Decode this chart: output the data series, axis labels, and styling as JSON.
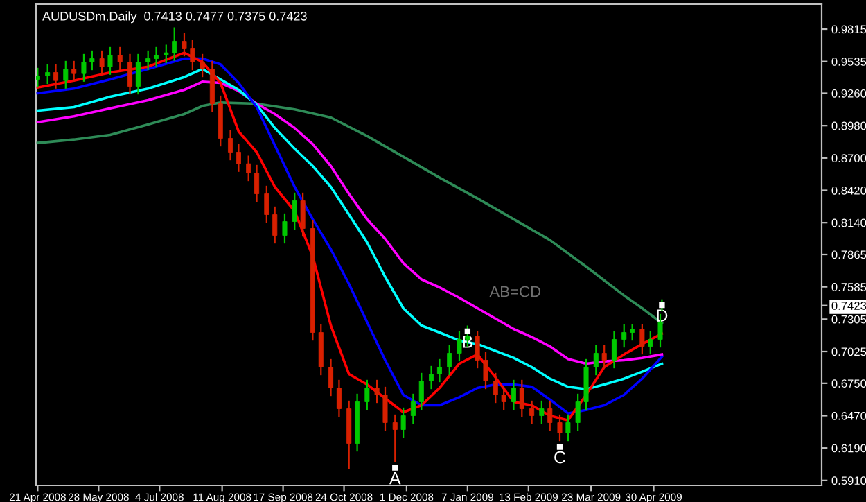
{
  "chart_data": {
    "type": "candlestick",
    "title": "AUDUSDm,Daily  0.7413 0.7477 0.7375 0.7423",
    "x": [
      "2008-04-21",
      "2008-04-27",
      "2008-05-02",
      "2008-05-08",
      "2008-05-13",
      "2008-05-19",
      "2008-05-24",
      "2008-05-30",
      "2008-06-04",
      "2008-06-10",
      "2008-06-16",
      "2008-06-21",
      "2008-06-27",
      "2008-07-02",
      "2008-07-08",
      "2008-07-13",
      "2008-07-19",
      "2008-07-24",
      "2008-07-30",
      "2008-08-05",
      "2008-08-10",
      "2008-08-16",
      "2008-08-21",
      "2008-08-27",
      "2008-09-01",
      "2008-09-07",
      "2008-09-12",
      "2008-09-18",
      "2008-09-24",
      "2008-09-29",
      "2008-10-05",
      "2008-10-10",
      "2008-10-16",
      "2008-10-21",
      "2008-10-27",
      "2008-11-01",
      "2008-11-07",
      "2008-11-13",
      "2008-11-18",
      "2008-11-24",
      "2008-11-29",
      "2008-12-05",
      "2008-12-10",
      "2008-12-16",
      "2008-12-21",
      "2008-12-27",
      "2009-01-02",
      "2009-01-07",
      "2009-01-13",
      "2009-01-18",
      "2009-01-24",
      "2009-01-29",
      "2009-02-04",
      "2009-02-09",
      "2009-02-15",
      "2009-02-21",
      "2009-02-26",
      "2009-03-04",
      "2009-03-09",
      "2009-03-15",
      "2009-03-20",
      "2009-03-26",
      "2009-03-31",
      "2009-04-06",
      "2009-04-12",
      "2009-04-17",
      "2009-04-23",
      "2009-04-28",
      "2009-05-04",
      "2009-05-05"
    ],
    "ohlc": [
      [
        0.938,
        0.948,
        0.931,
        0.941
      ],
      [
        0.941,
        0.951,
        0.934,
        0.944
      ],
      [
        0.944,
        0.951,
        0.93,
        0.937
      ],
      [
        0.937,
        0.954,
        0.93,
        0.947
      ],
      [
        0.947,
        0.954,
        0.936,
        0.943
      ],
      [
        0.943,
        0.96,
        0.936,
        0.953
      ],
      [
        0.953,
        0.963,
        0.946,
        0.956
      ],
      [
        0.956,
        0.963,
        0.942,
        0.949
      ],
      [
        0.949,
        0.966,
        0.942,
        0.959
      ],
      [
        0.959,
        0.966,
        0.946,
        0.953
      ],
      [
        0.953,
        0.96,
        0.925,
        0.932
      ],
      [
        0.932,
        0.96,
        0.925,
        0.953
      ],
      [
        0.953,
        0.963,
        0.946,
        0.956
      ],
      [
        0.956,
        0.966,
        0.949,
        0.959
      ],
      [
        0.959,
        0.968,
        0.952,
        0.961
      ],
      [
        0.961,
        0.983,
        0.954,
        0.971
      ],
      [
        0.971,
        0.978,
        0.958,
        0.965
      ],
      [
        0.965,
        0.972,
        0.946,
        0.953
      ],
      [
        0.953,
        0.96,
        0.94,
        0.947
      ],
      [
        0.947,
        0.954,
        0.91,
        0.917
      ],
      [
        0.917,
        0.924,
        0.88,
        0.887
      ],
      [
        0.887,
        0.894,
        0.868,
        0.875
      ],
      [
        0.875,
        0.882,
        0.858,
        0.865
      ],
      [
        0.865,
        0.872,
        0.85,
        0.857
      ],
      [
        0.857,
        0.864,
        0.832,
        0.839
      ],
      [
        0.839,
        0.846,
        0.814,
        0.821
      ],
      [
        0.821,
        0.828,
        0.796,
        0.803
      ],
      [
        0.803,
        0.822,
        0.796,
        0.815
      ],
      [
        0.815,
        0.84,
        0.808,
        0.833
      ],
      [
        0.833,
        0.84,
        0.802,
        0.809
      ],
      [
        0.809,
        0.816,
        0.712,
        0.719
      ],
      [
        0.719,
        0.726,
        0.682,
        0.689
      ],
      [
        0.689,
        0.696,
        0.664,
        0.671
      ],
      [
        0.671,
        0.678,
        0.646,
        0.653
      ],
      [
        0.653,
        0.66,
        0.601,
        0.623
      ],
      [
        0.623,
        0.666,
        0.616,
        0.659
      ],
      [
        0.659,
        0.678,
        0.652,
        0.671
      ],
      [
        0.671,
        0.678,
        0.658,
        0.665
      ],
      [
        0.665,
        0.672,
        0.634,
        0.641
      ],
      [
        0.641,
        0.648,
        0.607,
        0.635
      ],
      [
        0.635,
        0.654,
        0.628,
        0.647
      ],
      [
        0.647,
        0.666,
        0.64,
        0.659
      ],
      [
        0.659,
        0.684,
        0.652,
        0.677
      ],
      [
        0.677,
        0.69,
        0.67,
        0.683
      ],
      [
        0.683,
        0.696,
        0.676,
        0.689
      ],
      [
        0.689,
        0.708,
        0.682,
        0.701
      ],
      [
        0.701,
        0.72,
        0.694,
        0.713
      ],
      [
        0.713,
        0.725,
        0.706,
        0.716
      ],
      [
        0.716,
        0.72,
        0.688,
        0.695
      ],
      [
        0.695,
        0.702,
        0.67,
        0.677
      ],
      [
        0.677,
        0.684,
        0.658,
        0.665
      ],
      [
        0.665,
        0.672,
        0.652,
        0.659
      ],
      [
        0.659,
        0.678,
        0.652,
        0.671
      ],
      [
        0.671,
        0.678,
        0.646,
        0.653
      ],
      [
        0.653,
        0.66,
        0.64,
        0.647
      ],
      [
        0.647,
        0.66,
        0.64,
        0.653
      ],
      [
        0.653,
        0.66,
        0.634,
        0.641
      ],
      [
        0.641,
        0.648,
        0.625,
        0.632
      ],
      [
        0.632,
        0.648,
        0.625,
        0.641
      ],
      [
        0.641,
        0.666,
        0.634,
        0.659
      ],
      [
        0.659,
        0.696,
        0.652,
        0.689
      ],
      [
        0.689,
        0.708,
        0.682,
        0.701
      ],
      [
        0.701,
        0.708,
        0.688,
        0.695
      ],
      [
        0.695,
        0.72,
        0.688,
        0.713
      ],
      [
        0.713,
        0.726,
        0.706,
        0.719
      ],
      [
        0.719,
        0.726,
        0.712,
        0.722
      ],
      [
        0.722,
        0.726,
        0.7,
        0.707
      ],
      [
        0.707,
        0.72,
        0.7,
        0.713
      ],
      [
        0.713,
        0.735,
        0.706,
        0.728
      ],
      [
        0.7413,
        0.7477,
        0.7375,
        0.7423
      ]
    ],
    "colors": [
      "#00c800",
      "#00c800",
      "#d82000",
      "#00c800",
      "#d82000",
      "#00c800",
      "#00c800",
      "#d82000",
      "#00c800",
      "#d82000",
      "#d82000",
      "#00c800",
      "#00c800",
      "#00c800",
      "#00c800",
      "#00c800",
      "#d82000",
      "#d82000",
      "#d82000",
      "#d82000",
      "#d82000",
      "#d82000",
      "#d82000",
      "#d82000",
      "#d82000",
      "#d82000",
      "#d82000",
      "#00c800",
      "#00c800",
      "#d82000",
      "#d82000",
      "#d82000",
      "#d82000",
      "#d82000",
      "#d82000",
      "#00c800",
      "#00c800",
      "#d82000",
      "#d82000",
      "#d82000",
      "#00c800",
      "#00c800",
      "#00c800",
      "#00c800",
      "#00c800",
      "#00c800",
      "#00c800",
      "#00c800",
      "#d82000",
      "#d82000",
      "#d82000",
      "#d82000",
      "#00c800",
      "#d82000",
      "#d82000",
      "#00c800",
      "#d82000",
      "#d82000",
      "#00c800",
      "#00c800",
      "#00c800",
      "#00c800",
      "#d82000",
      "#00c800",
      "#00c800",
      "#00c800",
      "#d82000",
      "#00c800",
      "#00c800",
      "#00c800"
    ],
    "series": [
      {
        "type": "line",
        "color": "#2e8b57",
        "x": [
          "2008-04-21",
          "2008-05-13",
          "2008-06-04",
          "2008-06-27",
          "2008-07-19",
          "2008-07-30",
          "2008-08-10",
          "2008-09-01",
          "2008-09-24",
          "2008-10-16",
          "2008-11-07",
          "2008-11-29",
          "2008-12-21",
          "2009-01-13",
          "2009-02-04",
          "2009-02-26",
          "2009-03-20",
          "2009-04-12",
          "2009-04-23",
          "2009-05-05"
        ],
        "values": [
          0.883,
          0.886,
          0.89,
          0.899,
          0.908,
          0.915,
          0.918,
          0.917,
          0.912,
          0.905,
          0.889,
          0.871,
          0.853,
          0.835,
          0.817,
          0.799,
          0.776,
          0.751,
          0.74,
          0.727
        ]
      },
      {
        "type": "line",
        "color": "#ff00ff",
        "x": [
          "2008-04-21",
          "2008-05-13",
          "2008-06-04",
          "2008-06-27",
          "2008-07-19",
          "2008-07-30",
          "2008-08-10",
          "2008-08-21",
          "2008-09-01",
          "2008-09-12",
          "2008-09-24",
          "2008-10-05",
          "2008-10-16",
          "2008-10-27",
          "2008-11-07",
          "2008-11-18",
          "2008-11-29",
          "2008-12-10",
          "2008-12-21",
          "2009-01-02",
          "2009-01-13",
          "2009-01-24",
          "2009-02-04",
          "2009-02-15",
          "2009-02-26",
          "2009-03-09",
          "2009-03-20",
          "2009-03-31",
          "2009-04-12",
          "2009-04-23",
          "2009-05-05"
        ],
        "values": [
          0.901,
          0.906,
          0.913,
          0.92,
          0.929,
          0.936,
          0.935,
          0.928,
          0.917,
          0.908,
          0.896,
          0.882,
          0.863,
          0.839,
          0.817,
          0.8,
          0.779,
          0.765,
          0.758,
          0.749,
          0.74,
          0.731,
          0.722,
          0.715,
          0.707,
          0.696,
          0.692,
          0.694,
          0.695,
          0.697,
          0.7
        ]
      },
      {
        "type": "line",
        "color": "#00ffff",
        "x": [
          "2008-04-21",
          "2008-05-13",
          "2008-06-04",
          "2008-06-27",
          "2008-07-19",
          "2008-07-30",
          "2008-08-10",
          "2008-08-21",
          "2008-09-01",
          "2008-09-12",
          "2008-09-24",
          "2008-10-05",
          "2008-10-16",
          "2008-10-27",
          "2008-11-07",
          "2008-11-18",
          "2008-11-29",
          "2008-12-10",
          "2008-12-21",
          "2009-01-02",
          "2009-01-13",
          "2009-01-24",
          "2009-02-04",
          "2009-02-15",
          "2009-02-26",
          "2009-03-09",
          "2009-03-20",
          "2009-03-31",
          "2009-04-12",
          "2009-04-23",
          "2009-05-05"
        ],
        "values": [
          0.911,
          0.914,
          0.923,
          0.93,
          0.94,
          0.947,
          0.938,
          0.929,
          0.916,
          0.896,
          0.878,
          0.863,
          0.845,
          0.821,
          0.797,
          0.767,
          0.74,
          0.725,
          0.719,
          0.712,
          0.709,
          0.703,
          0.697,
          0.689,
          0.679,
          0.672,
          0.67,
          0.674,
          0.679,
          0.685,
          0.692
        ]
      },
      {
        "type": "line",
        "color": "#0000ff",
        "x": [
          "2008-04-21",
          "2008-05-13",
          "2008-06-04",
          "2008-06-27",
          "2008-07-19",
          "2008-07-30",
          "2008-08-10",
          "2008-08-21",
          "2008-09-01",
          "2008-09-12",
          "2008-09-24",
          "2008-10-05",
          "2008-10-16",
          "2008-10-27",
          "2008-11-07",
          "2008-11-18",
          "2008-11-29",
          "2008-12-10",
          "2008-12-21",
          "2009-01-02",
          "2009-01-13",
          "2009-01-24",
          "2009-02-04",
          "2009-02-15",
          "2009-02-26",
          "2009-03-09",
          "2009-03-20",
          "2009-03-31",
          "2009-04-12",
          "2009-04-23",
          "2009-05-05"
        ],
        "values": [
          0.926,
          0.93,
          0.938,
          0.947,
          0.956,
          0.956,
          0.951,
          0.935,
          0.914,
          0.881,
          0.845,
          0.817,
          0.791,
          0.761,
          0.728,
          0.695,
          0.665,
          0.656,
          0.656,
          0.663,
          0.671,
          0.674,
          0.674,
          0.672,
          0.661,
          0.649,
          0.652,
          0.656,
          0.665,
          0.679,
          0.698
        ]
      },
      {
        "type": "line",
        "color": "#ff0000",
        "x": [
          "2008-04-21",
          "2008-05-13",
          "2008-06-04",
          "2008-06-27",
          "2008-07-19",
          "2008-07-30",
          "2008-08-10",
          "2008-08-21",
          "2008-09-01",
          "2008-09-12",
          "2008-09-24",
          "2008-10-05",
          "2008-10-16",
          "2008-10-27",
          "2008-11-07",
          "2008-11-18",
          "2008-11-29",
          "2008-12-10",
          "2008-12-21",
          "2009-01-02",
          "2009-01-13",
          "2009-01-24",
          "2009-02-04",
          "2009-02-15",
          "2009-02-26",
          "2009-03-09",
          "2009-03-20",
          "2009-03-31",
          "2009-04-12",
          "2009-04-23",
          "2009-05-05"
        ],
        "values": [
          0.931,
          0.937,
          0.944,
          0.949,
          0.961,
          0.953,
          0.935,
          0.893,
          0.875,
          0.845,
          0.824,
          0.785,
          0.725,
          0.683,
          0.674,
          0.662,
          0.65,
          0.656,
          0.671,
          0.692,
          0.7,
          0.68,
          0.659,
          0.656,
          0.647,
          0.643,
          0.665,
          0.689,
          0.7,
          0.709,
          0.718
        ]
      }
    ],
    "annotations": [
      {
        "text": "A",
        "x": "2008-11-24",
        "y": 0.607
      },
      {
        "text": "B",
        "x": "2009-01-07",
        "y": 0.725
      },
      {
        "text": "C",
        "x": "2009-03-04",
        "y": 0.625
      },
      {
        "text": "D",
        "x": "2009-05-05",
        "y": 0.7477
      },
      "AB=CD"
    ],
    "xlim": [
      "2008-04-20",
      "2009-08-10"
    ],
    "xticks": [
      {
        "value": "2008-04-21",
        "label": "21 Apr 2008"
      },
      {
        "value": "2008-05-28",
        "label": "28 May 2008"
      },
      {
        "value": "2008-07-04",
        "label": "4 Jul 2008"
      },
      {
        "value": "2008-08-11",
        "label": "11 Aug 2008"
      },
      {
        "value": "2008-09-17",
        "label": "17 Sep 2008"
      },
      {
        "value": "2008-10-24",
        "label": "24 Oct 2008"
      },
      {
        "value": "2008-12-01",
        "label": "1 Dec 2008"
      },
      {
        "value": "2009-01-07",
        "label": "7 Jan 2009"
      },
      {
        "value": "2009-02-13",
        "label": "13 Feb 2009"
      },
      {
        "value": "2009-03-23",
        "label": "23 Mar 2009"
      },
      {
        "value": "2009-04-30",
        "label": "30 Apr 2009"
      }
    ],
    "ylim": [
      0.5867,
      1.0031
    ],
    "yticks": [
      0.9815,
      0.9535,
      {
        "value": 0.926,
        "label": "0.9260"
      },
      {
        "value": 0.898,
        "label": "0.8980"
      },
      {
        "value": 0.87,
        "label": "0.8700"
      },
      {
        "value": 0.842,
        "label": "0.8420"
      },
      {
        "value": 0.814,
        "label": "0.8140"
      },
      0.7865,
      0.7585,
      0.7305,
      0.7025,
      {
        "value": 0.675,
        "label": "0.6750"
      },
      {
        "value": 0.647,
        "label": "0.6470"
      },
      {
        "value": 0.619,
        "label": "0.6190"
      },
      {
        "value": 0.591,
        "label": "0.5910"
      },
      0.7423
    ],
    "grid": false,
    "legend": false
  }
}
